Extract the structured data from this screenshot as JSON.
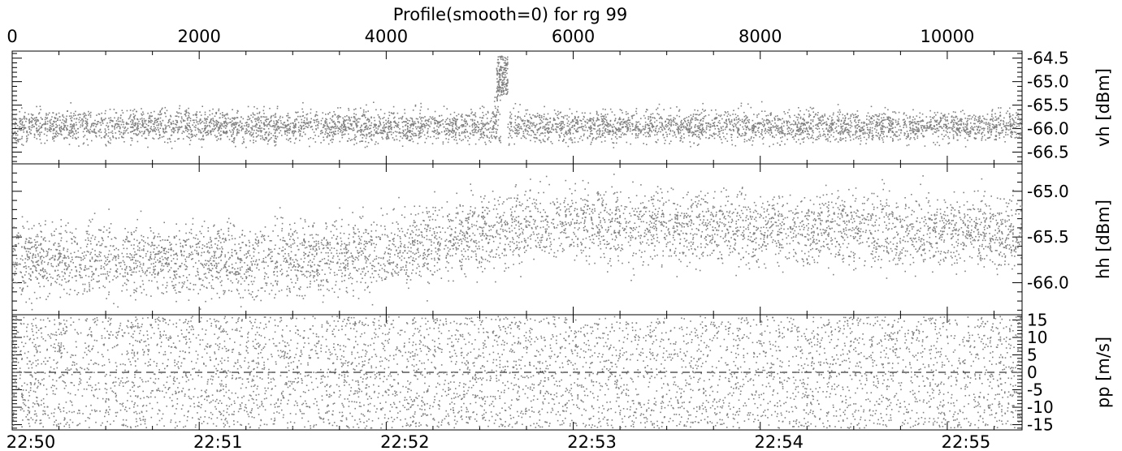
{
  "chart_data": {
    "type": "scatter",
    "title": "Profile(smooth=0) for rg 99",
    "top_axis": {
      "range": [
        0,
        10800
      ],
      "tick_labels": [
        "0",
        "2000",
        "4000",
        "6000",
        "8000",
        "10000"
      ],
      "tick_values": [
        0,
        2000,
        4000,
        6000,
        8000,
        10000
      ]
    },
    "bottom_axis": {
      "tick_labels": [
        "22:50",
        "22:51",
        "22:52",
        "22:53",
        "22:54",
        "22:55"
      ],
      "tick_values": [
        200,
        2200,
        4200,
        6200,
        8200,
        10200
      ]
    },
    "marker_color": "#808080",
    "panels": [
      {
        "name": "vh",
        "ylabel": "vh [dBm]",
        "ylim": [
          -66.75,
          -64.35
        ],
        "tick_labels": [
          "-64.5",
          "-65.0",
          "-65.5",
          "-66.0",
          "-66.5"
        ],
        "tick_values": [
          -64.5,
          -65.0,
          -65.5,
          -66.0,
          -66.5
        ],
        "baseline": -65.95,
        "spread": 0.17,
        "spike": {
          "x_range": [
            5180,
            5300
          ],
          "y_range": [
            -65.3,
            -64.45
          ],
          "label_hint": ""
        }
      },
      {
        "name": "hh",
        "ylabel": "hh [dBm]",
        "ylim": [
          -66.35,
          -64.7
        ],
        "tick_labels": [
          "-65.0",
          "-65.5",
          "-66.0"
        ],
        "tick_values": [
          -65.0,
          -65.5,
          -66.0
        ],
        "trend_x": [
          0,
          3000,
          4000,
          5000,
          6000,
          8000,
          10800
        ],
        "trend_y": [
          -65.75,
          -65.75,
          -65.65,
          -65.45,
          -65.35,
          -65.4,
          -65.45
        ],
        "spread": 0.2
      },
      {
        "name": "pp",
        "ylabel": "pp [m/s]",
        "ylim": [
          -16.5,
          16.5
        ],
        "tick_labels": [
          "15",
          "10",
          "5",
          "0",
          "-5",
          "-10",
          "-15"
        ],
        "tick_values": [
          15,
          10,
          5,
          0,
          -5,
          -10,
          -15
        ],
        "uniform": [
          -16,
          16
        ],
        "dashed_zero": true
      }
    ]
  }
}
